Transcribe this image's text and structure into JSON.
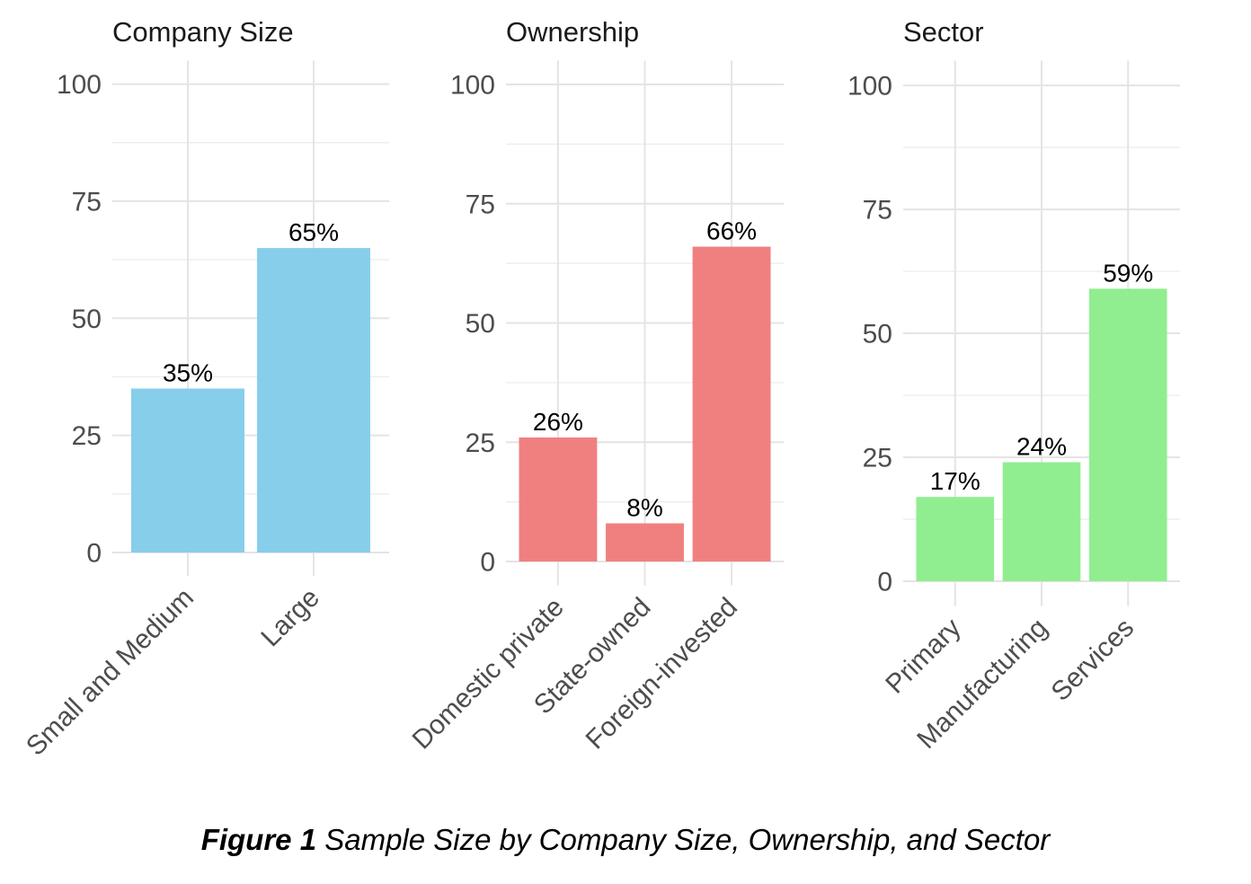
{
  "figure_caption": {
    "label": "Figure 1",
    "text": " Sample Size by Company Size, Ownership, and Sector"
  },
  "style": {
    "background": "#FFFFFF",
    "title_color": "#1A1A1A",
    "axis_text_color": "#4D4D4D",
    "value_label_color": "#000000",
    "grid_major_color": "#E4E4E4",
    "grid_minor_color": "#EDEDED"
  },
  "chart_data": [
    {
      "type": "bar",
      "title": "Company Size",
      "categories": [
        "Small and Medium",
        "Large"
      ],
      "values": [
        35,
        65
      ],
      "value_labels": [
        "35%",
        "65%"
      ],
      "bar_color": "#87CEEB",
      "ylim": [
        0,
        100
      ],
      "yticks": [
        0,
        25,
        50,
        75,
        100
      ],
      "yticks_minor": [
        12.5,
        37.5,
        62.5,
        87.5
      ],
      "grid": "on",
      "legend": "none",
      "x_label_angle": 45
    },
    {
      "type": "bar",
      "title": "Ownership",
      "categories": [
        "Domestic private",
        "State-owned",
        "Foreign-invested"
      ],
      "values": [
        26,
        8,
        66
      ],
      "value_labels": [
        "26%",
        "8%",
        "66%"
      ],
      "bar_color": "#F08080",
      "ylim": [
        0,
        100
      ],
      "yticks": [
        0,
        25,
        50,
        75,
        100
      ],
      "yticks_minor": [
        12.5,
        37.5,
        62.5,
        87.5
      ],
      "grid": "on",
      "legend": "none",
      "x_label_angle": 45
    },
    {
      "type": "bar",
      "title": "Sector",
      "categories": [
        "Primary",
        "Manufacturing",
        "Services"
      ],
      "values": [
        17,
        24,
        59
      ],
      "value_labels": [
        "17%",
        "24%",
        "59%"
      ],
      "bar_color": "#90EE90",
      "ylim": [
        0,
        100
      ],
      "yticks": [
        0,
        25,
        50,
        75,
        100
      ],
      "yticks_minor": [
        12.5,
        37.5,
        62.5,
        87.5
      ],
      "grid": "on",
      "legend": "none",
      "x_label_angle": 45
    }
  ]
}
